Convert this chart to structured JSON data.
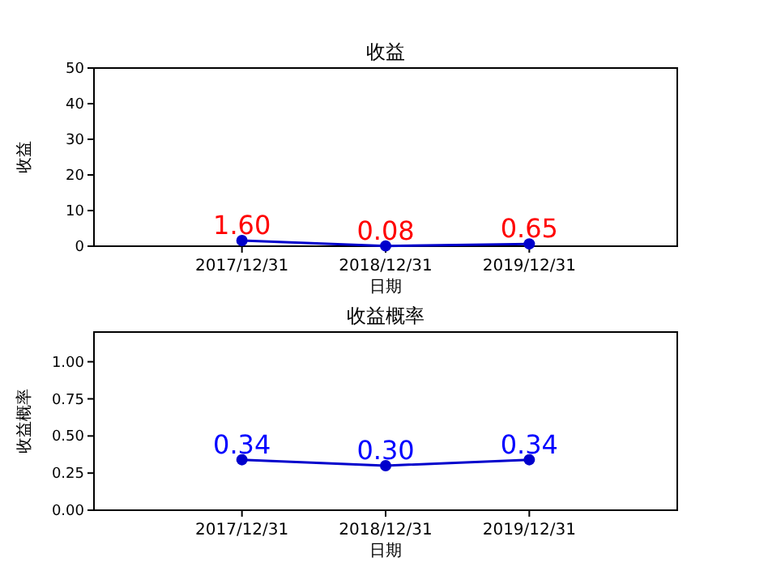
{
  "chart_data": [
    {
      "type": "line",
      "title": "收益",
      "xlabel": "日期",
      "ylabel": "收益",
      "categories": [
        "2017/12/31",
        "2018/12/31",
        "2019/12/31"
      ],
      "series": [
        {
          "color": "#0000cc",
          "values": [
            1.6,
            0.08,
            0.65
          ]
        }
      ],
      "ylim": [
        0,
        50
      ],
      "yticks": [
        0,
        10,
        20,
        30,
        40,
        50
      ],
      "marker": "circle",
      "line_style": "solid",
      "value_labels": [
        "1.60",
        "0.08",
        "0.65"
      ],
      "grid": false
    },
    {
      "type": "line",
      "title": "收益概率",
      "xlabel": "日期",
      "ylabel": "收益概率",
      "categories": [
        "2017/12/31",
        "2018/12/31",
        "2019/12/31"
      ],
      "series": [
        {
          "color": "#0000cc",
          "values": [
            0.34,
            0.3,
            0.34
          ]
        }
      ],
      "ylim": [
        0,
        1.2
      ],
      "yticks": [
        {
          "value": 0,
          "label": "0.00"
        },
        {
          "value": 0.25,
          "label": "0.25"
        },
        {
          "value": 0.5,
          "label": "0.50"
        },
        {
          "value": 0.75,
          "label": "0.75"
        },
        {
          "value": 1,
          "label": "1.00"
        }
      ],
      "marker": "circle",
      "line_style": "solid",
      "value_labels": [
        "0.34",
        "0.30",
        "0.34"
      ],
      "grid": false
    }
  ]
}
